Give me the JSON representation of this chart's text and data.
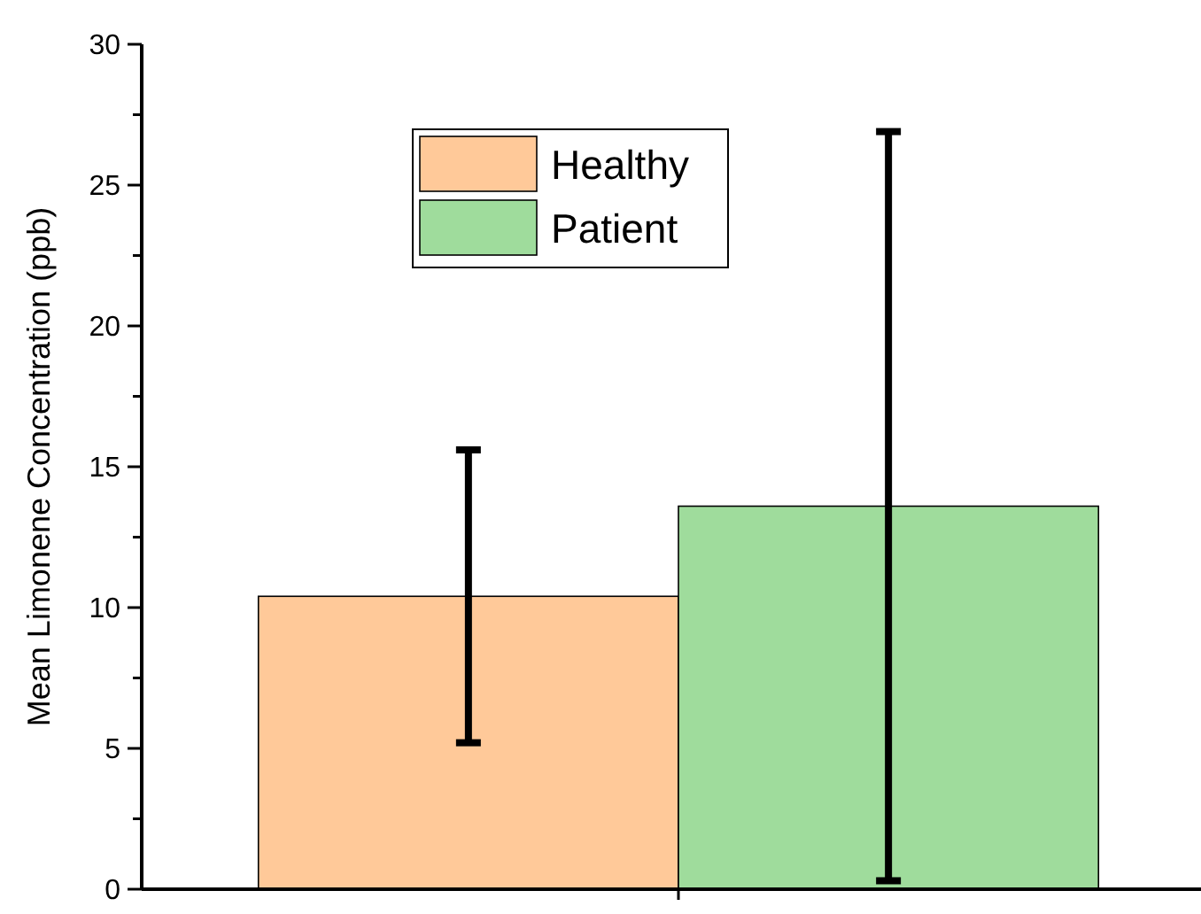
{
  "chart_data": {
    "type": "bar",
    "ylabel": "Mean Limonene Concentration (ppb)",
    "categories": [
      null
    ],
    "series": [
      {
        "name": "Healthy",
        "color": "#ffc999",
        "values": [
          10.4
        ],
        "errors": [
          5.2
        ]
      },
      {
        "name": "Patient",
        "color": "#9fdc9c",
        "values": [
          13.6
        ],
        "errors": [
          13.3
        ]
      }
    ],
    "ylim": [
      0,
      30
    ],
    "yticks": [
      0,
      {
        "value": 2.5,
        "label": null
      },
      5,
      {
        "value": 7.5,
        "label": null
      },
      10,
      {
        "value": 12.5,
        "label": null
      },
      15,
      {
        "value": 17.5,
        "label": null
      },
      20,
      {
        "value": 22.5,
        "label": null
      },
      25,
      {
        "value": 27.5,
        "label": null
      },
      30
    ],
    "legend": "top"
  }
}
